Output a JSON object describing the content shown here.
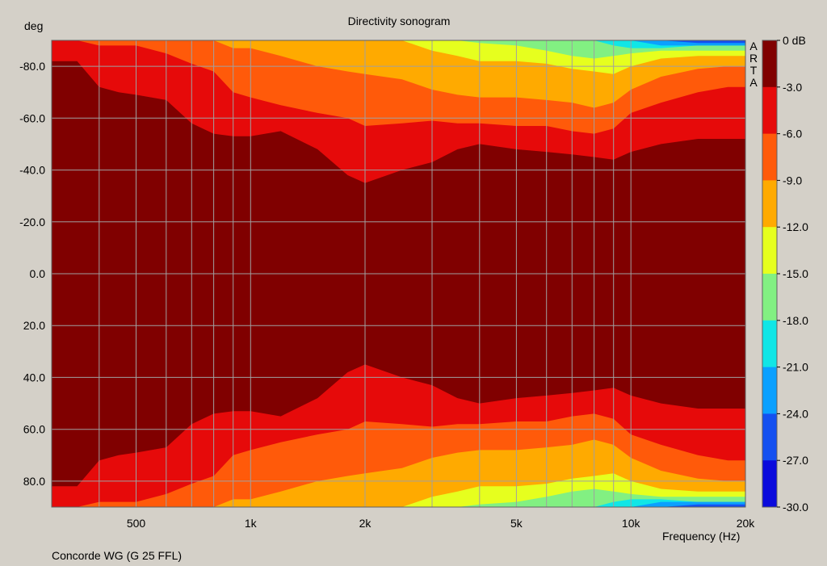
{
  "chart_data": {
    "type": "heatmap",
    "title": "Directivity sonogram",
    "ylabel": "deg",
    "xlabel": "Frequency (Hz)",
    "footer": "Concorde WG (G 25 FFL)",
    "watermark": [
      "A",
      "R",
      "T",
      "A"
    ],
    "x_scale": "log",
    "xlim": [
      300,
      20000
    ],
    "ylim": [
      -90,
      90
    ],
    "x_tick_labels": [
      {
        "value": 500,
        "label": "500"
      },
      {
        "value": 1000,
        "label": "1k"
      },
      {
        "value": 2000,
        "label": "2k"
      },
      {
        "value": 5000,
        "label": "5k"
      },
      {
        "value": 10000,
        "label": "10k"
      },
      {
        "value": 20000,
        "label": "20k"
      }
    ],
    "x_gridlines": [
      400,
      500,
      600,
      700,
      800,
      900,
      1000,
      2000,
      3000,
      4000,
      5000,
      6000,
      7000,
      8000,
      9000,
      10000,
      20000
    ],
    "y_tick_labels": [
      {
        "value": -80,
        "label": "-80.0"
      },
      {
        "value": -60,
        "label": "-60.0"
      },
      {
        "value": -40,
        "label": "-40.0"
      },
      {
        "value": -20,
        "label": "-20.0"
      },
      {
        "value": 0,
        "label": "0.0"
      },
      {
        "value": 20,
        "label": "20.0"
      },
      {
        "value": 40,
        "label": "40.0"
      },
      {
        "value": 60,
        "label": "60.0"
      },
      {
        "value": 80,
        "label": "80.0"
      }
    ],
    "colorbar": {
      "unit": "dB",
      "levels": [
        "0 dB",
        "-3.0",
        "-6.0",
        "-9.0",
        "-12.0",
        "-15.0",
        "-18.0",
        "-21.0",
        "-24.0",
        "-27.0",
        "-30.0"
      ],
      "colors": [
        "#800000",
        "#e60a0a",
        "#ff5a0a",
        "#ffaa00",
        "#e6ff1e",
        "#82f082",
        "#10e6e6",
        "#0aa0ff",
        "#1450f0",
        "#0a0adc"
      ]
    },
    "contours_deg": {
      "frequency_hz": [
        300,
        350,
        400,
        450,
        500,
        600,
        700,
        800,
        900,
        1000,
        1200,
        1500,
        1800,
        2000,
        2500,
        3000,
        3500,
        4000,
        5000,
        6000,
        7000,
        8000,
        9000,
        10000,
        12000,
        15000,
        18000,
        20000
      ],
      "-3dB": [
        82,
        82,
        72,
        70,
        69,
        67,
        58,
        54,
        53,
        53,
        55,
        48,
        38,
        35,
        40,
        43,
        48,
        50,
        48,
        47,
        46,
        45,
        44,
        47,
        50,
        52,
        52,
        52
      ],
      "-6dB": [
        90,
        90,
        88,
        88,
        88,
        85,
        81,
        78,
        70,
        68,
        65,
        62,
        60,
        57,
        58,
        59,
        58,
        58,
        57,
        57,
        55,
        54,
        56,
        62,
        66,
        70,
        72,
        72
      ],
      "-9dB": [
        90,
        90,
        90,
        90,
        90,
        90,
        90,
        90,
        87,
        87,
        84,
        80,
        78,
        77,
        75,
        71,
        69,
        68,
        68,
        67,
        66,
        64,
        66,
        71,
        76,
        79,
        80,
        80
      ],
      "-12dB": [
        90,
        90,
        90,
        90,
        90,
        90,
        90,
        90,
        90,
        90,
        90,
        90,
        90,
        90,
        90,
        86,
        84,
        82,
        82,
        81,
        79,
        78,
        77,
        80,
        83,
        84,
        84,
        84
      ],
      "-15dB": [
        90,
        90,
        90,
        90,
        90,
        90,
        90,
        90,
        90,
        90,
        90,
        90,
        90,
        90,
        90,
        90,
        90,
        89,
        88,
        86,
        84,
        83,
        84,
        85,
        86,
        86,
        86,
        86
      ],
      "-18dB": [
        90,
        90,
        90,
        90,
        90,
        90,
        90,
        90,
        90,
        90,
        90,
        90,
        90,
        90,
        90,
        90,
        90,
        90,
        90,
        90,
        90,
        90,
        88,
        87,
        87,
        88,
        88,
        88
      ],
      "-21dB": [
        90,
        90,
        90,
        90,
        90,
        90,
        90,
        90,
        90,
        90,
        90,
        90,
        90,
        90,
        90,
        90,
        90,
        90,
        90,
        90,
        90,
        90,
        90,
        90,
        88,
        88,
        88,
        88
      ],
      "-24dB": [
        90,
        90,
        90,
        90,
        90,
        90,
        90,
        90,
        90,
        90,
        90,
        90,
        90,
        90,
        90,
        90,
        90,
        90,
        90,
        90,
        90,
        90,
        90,
        90,
        90,
        89,
        89,
        89
      ],
      "-27dB": [
        90,
        90,
        90,
        90,
        90,
        90,
        90,
        90,
        90,
        90,
        90,
        90,
        90,
        90,
        90,
        90,
        90,
        90,
        90,
        90,
        90,
        90,
        90,
        90,
        90,
        90,
        90,
        90
      ]
    }
  }
}
